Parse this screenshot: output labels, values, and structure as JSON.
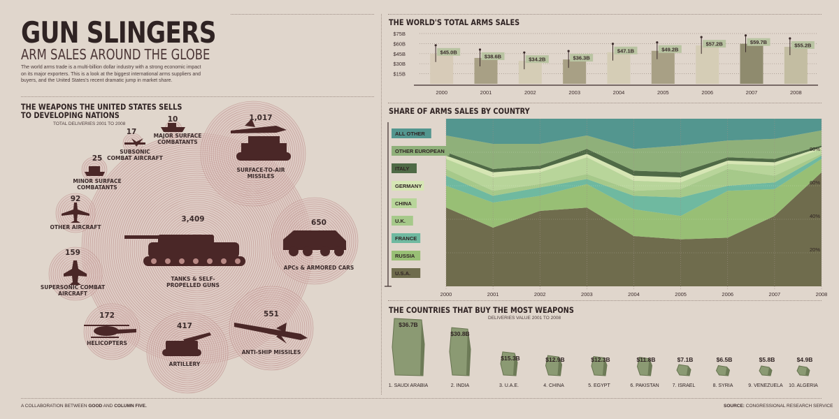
{
  "title": "GUN SLINGERS",
  "subtitle": "ARM SALES AROUND THE GLOBE",
  "intro": "The world arms trade is a multi-billion dollar industry with a strong economic impact on its major exporters. This is a look at the biggest international arms suppliers and buyers, and the United States's recent dramatic jump in market share.",
  "weapons": {
    "heading_line1": "THE WEAPONS THE UNITED STATES SELLS",
    "heading_line2": "TO DEVELOPING NATIONS",
    "subheading": "TOTAL DELIVERIES 2001 TO 2008",
    "items": [
      {
        "label": "TANKS & SELF-PROPELLED GUNS",
        "count": "3,409",
        "icon": "tank-icon"
      },
      {
        "label": "SURFACE-TO-AIR MISSILES",
        "count": "1,017",
        "icon": "missile-launcher-icon"
      },
      {
        "label": "APCs & ARMORED CARS",
        "count": "650",
        "icon": "armored-car-icon"
      },
      {
        "label": "ANTI-SHIP MISSILES",
        "count": "551",
        "icon": "anti-ship-missile-icon"
      },
      {
        "label": "ARTILLERY",
        "count": "417",
        "icon": "artillery-icon"
      },
      {
        "label": "HELICOPTERS",
        "count": "172",
        "icon": "helicopter-icon"
      },
      {
        "label": "SUPERSONIC COMBAT AIRCRAFT",
        "count": "159",
        "icon": "jet-icon"
      },
      {
        "label": "OTHER AIRCRAFT",
        "count": "92",
        "icon": "airplane-icon"
      },
      {
        "label": "MINOR SURFACE COMBATANTS",
        "count": "25",
        "icon": "boat-icon"
      },
      {
        "label": "SUBSONIC COMBAT AIRCRAFT",
        "count": "17",
        "icon": "subsonic-jet-icon"
      },
      {
        "label": "MAJOR SURFACE COMBATANTS",
        "count": "10",
        "icon": "warship-icon"
      }
    ]
  },
  "chart_data": [
    {
      "type": "bar",
      "title": "THE WORLD'S TOTAL ARMS SALES",
      "categories": [
        "2000",
        "2001",
        "2002",
        "2003",
        "2004",
        "2005",
        "2006",
        "2007",
        "2008"
      ],
      "values": [
        45.0,
        38.6,
        34.2,
        36.3,
        47.1,
        49.2,
        57.2,
        59.7,
        55.2
      ],
      "data_labels": [
        "$45.0B",
        "$38.6B",
        "$34.2B",
        "$36.3B",
        "$47.1B",
        "$49.2B",
        "$57.2B",
        "$59.7B",
        "$55.2B"
      ],
      "ytick_labels": [
        "$15B",
        "$30B",
        "$45B",
        "$60B",
        "$75B"
      ],
      "yticks": [
        15,
        30,
        45,
        60,
        75
      ],
      "ylim": [
        0,
        75
      ],
      "colors": [
        "#d7cbb8",
        "#a8a085",
        "#d5cdb6",
        "#a8a085",
        "#d5cdb6",
        "#a8a085",
        "#d5cdb6",
        "#8f8b6e",
        "#c3bda2"
      ]
    },
    {
      "type": "area",
      "title": "SHARE OF ARMS SALES BY COUNTRY",
      "x": [
        "2000",
        "2001",
        "2002",
        "2003",
        "2004",
        "2005",
        "2006",
        "2007",
        "2008"
      ],
      "ylim": [
        0,
        100
      ],
      "yticks": [
        20,
        40,
        60,
        80
      ],
      "ytick_labels": [
        "20%",
        "40%",
        "60%",
        "80%"
      ],
      "series": [
        {
          "name": "U.S.A.",
          "color": "#6f6c4d",
          "values": [
            47,
            35,
            45,
            47,
            30,
            28,
            29,
            42,
            68
          ]
        },
        {
          "name": "RUSSIA",
          "color": "#98bf75",
          "values": [
            13,
            15,
            9,
            14,
            16,
            14,
            28,
            16,
            8
          ]
        },
        {
          "name": "FRANCE",
          "color": "#6fb9a0",
          "values": [
            6,
            4,
            5,
            3,
            8,
            11,
            3,
            4,
            2
          ]
        },
        {
          "name": "U.K.",
          "color": "#a6c98a",
          "values": [
            4,
            3,
            2,
            3,
            3,
            5,
            10,
            4,
            1
          ]
        },
        {
          "name": "CHINA",
          "color": "#b8d59a",
          "values": [
            6,
            8,
            7,
            10,
            6,
            4,
            3,
            6,
            3
          ]
        },
        {
          "name": "GERMANY",
          "color": "#d6e6b4",
          "values": [
            2,
            3,
            2,
            2,
            3,
            3,
            2,
            2,
            1
          ]
        },
        {
          "name": "ITALY",
          "color": "#4f6a46",
          "values": [
            2,
            2,
            2,
            3,
            3,
            3,
            2,
            2,
            1
          ]
        },
        {
          "name": "OTHER EUROPEAN",
          "color": "#8fb07a",
          "values": [
            10,
            15,
            13,
            8,
            13,
            16,
            10,
            12,
            9
          ]
        },
        {
          "name": "ALL OTHER",
          "color": "#53968f",
          "values": [
            10,
            15,
            15,
            10,
            18,
            16,
            13,
            12,
            7
          ]
        }
      ]
    },
    {
      "type": "bar",
      "title": "THE COUNTRIES THAT BUY THE MOST WEAPONS",
      "subtitle": "DELIVERIES VALUE 2001 TO 2008",
      "categories": [
        "1. SAUDI ARABIA",
        "2. INDIA",
        "3. U.A.E.",
        "4. CHINA",
        "5. EGYPT",
        "6. PAKISTAN",
        "7. ISRAEL",
        "8. SYRIA",
        "9. VENEZUELA",
        "10. ALGERIA"
      ],
      "values": [
        36.7,
        30.8,
        15.3,
        12.9,
        12.3,
        11.8,
        7.1,
        6.5,
        5.8,
        4.9
      ],
      "data_labels": [
        "$36.7B",
        "$30.8B",
        "$15.3B",
        "$12.9B",
        "$12.3B",
        "$11.8B",
        "$7.1B",
        "$6.5B",
        "$5.8B",
        "$4.9B"
      ],
      "color": "#8b9a73"
    }
  ],
  "footer": {
    "left_prefix": "A COLLABORATION BETWEEN ",
    "left_good": "GOOD",
    "left_and": " AND ",
    "left_c5": "COLUMN FIVE.",
    "right_prefix": "SOURCE:",
    "right_text": " CONGRESSIONAL RESEARCH SERVICE"
  }
}
